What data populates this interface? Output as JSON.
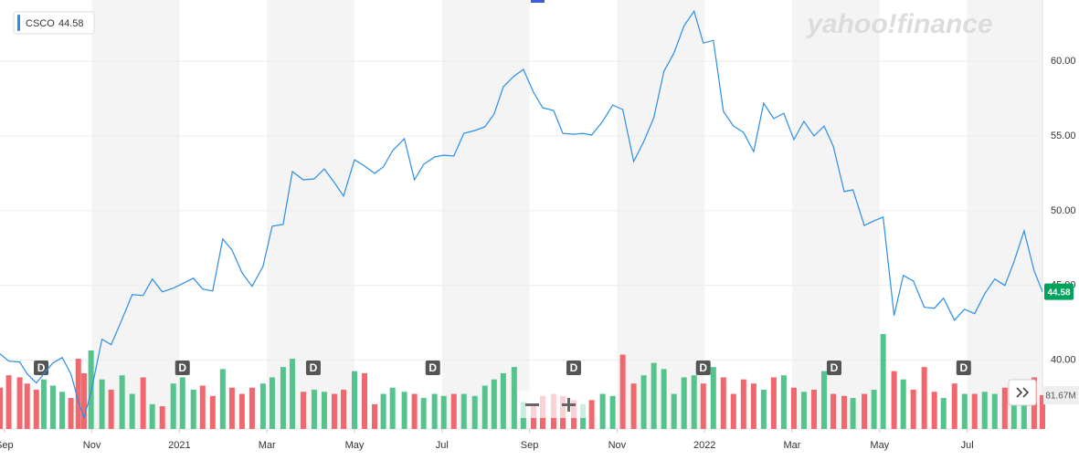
{
  "chart_data": {
    "type": "line",
    "logo": "yahoo!finance",
    "x": [
      -0.1,
      0.1,
      0.35,
      0.52,
      0.73,
      0.9,
      1.11,
      1.32,
      1.52,
      1.69,
      1.82,
      1.98,
      2.23,
      2.44,
      2.69,
      2.92,
      3.17,
      3.38,
      3.61,
      3.86,
      4.07,
      4.32,
      4.53,
      4.76,
      4.99,
      5.2,
      5.43,
      5.66,
      5.91,
      6.12,
      6.37,
      6.58,
      6.83,
      7.08,
      7.31,
      7.54,
      7.75,
      8.0,
      8.23,
      8.46,
      8.66,
      8.87,
      9.14,
      9.37,
      9.58,
      9.83,
      10.04,
      10.27,
      10.5,
      10.75,
      10.98,
      11.19,
      11.4,
      11.65,
      11.86,
      12.09,
      12.3,
      12.55,
      12.76,
      13.01,
      13.22,
      13.42,
      13.67,
      13.9,
      14.13,
      14.38,
      14.61,
      14.84,
      15.07,
      15.3,
      15.53,
      15.76,
      15.97,
      16.2,
      16.43,
      16.66,
      16.89,
      17.12,
      17.35,
      17.58,
      17.81,
      18.04,
      18.27,
      18.5,
      18.73,
      18.94,
      19.19,
      19.39,
      19.65,
      19.87,
      20.08,
      20.33,
      20.54,
      20.77,
      21.02,
      21.25,
      21.46,
      21.71,
      21.94,
      22.17,
      22.4,
      22.63,
      22.86,
      23.07,
      23.3,
      23.53,
      23.72
    ],
    "series": [
      {
        "name": "CSCO",
        "color": "#2a8ee6",
        "values": [
          40.43,
          39.94,
          39.88,
          39.09,
          38.48,
          39.09,
          39.82,
          40.18,
          39.09,
          37.26,
          36.16,
          37.87,
          41.4,
          41.04,
          42.74,
          44.39,
          44.33,
          45.43,
          44.57,
          44.82,
          45.12,
          45.49,
          44.76,
          44.63,
          48.11,
          47.38,
          45.85,
          44.94,
          46.28,
          48.96,
          49.09,
          52.62,
          52.07,
          52.13,
          52.8,
          51.89,
          50.98,
          53.41,
          52.99,
          52.5,
          52.93,
          54.02,
          54.82,
          52.07,
          53.11,
          53.6,
          53.72,
          53.66,
          55.18,
          55.37,
          55.61,
          56.46,
          58.29,
          59.02,
          59.45,
          57.93,
          56.89,
          56.71,
          55.18,
          55.12,
          55.18,
          55.06,
          55.98,
          57.07,
          56.77,
          53.29,
          54.63,
          56.22,
          59.33,
          60.55,
          62.38,
          63.35,
          61.22,
          61.4,
          56.65,
          55.67,
          55.24,
          53.96,
          57.2,
          56.16,
          56.52,
          54.76,
          55.98,
          55.0,
          55.67,
          54.33,
          51.28,
          51.4,
          49.02,
          49.33,
          49.57,
          42.99,
          45.67,
          45.3,
          43.54,
          43.48,
          44.15,
          42.68,
          43.41,
          43.11,
          44.45,
          45.43,
          45.0,
          46.59,
          48.66,
          45.98,
          44.58
        ]
      }
    ],
    "volume": {
      "up_color": "#55c48c",
      "down_color": "#f0676d",
      "vlim": [
        0,
        400
      ],
      "values": [
        100,
        130,
        125,
        110,
        95,
        120,
        105,
        90,
        75,
        170,
        135,
        190,
        120,
        95,
        130,
        85,
        125,
        60,
        55,
        110,
        125,
        95,
        105,
        80,
        145,
        100,
        85,
        100,
        110,
        125,
        150,
        170,
        90,
        95,
        90,
        85,
        95,
        140,
        135,
        60,
        85,
        100,
        90,
        85,
        75,
        85,
        80,
        85,
        85,
        80,
        105,
        120,
        135,
        150,
        65,
        60,
        80,
        85,
        80,
        70,
        60,
        70,
        85,
        80,
        180,
        110,
        130,
        160,
        145,
        85,
        125,
        130,
        110,
        150,
        125,
        85,
        120,
        110,
        95,
        125,
        130,
        100,
        90,
        95,
        140,
        85,
        80,
        75,
        85,
        95,
        230,
        140,
        120,
        95,
        150,
        90,
        75,
        110,
        85,
        85,
        90,
        85,
        100,
        105,
        110,
        125,
        81.67
      ],
      "last_value_label": "81.67M"
    },
    "dividends": {
      "label": "D",
      "x": [
        0.84,
        4.07,
        7.06,
        9.79,
        13.01,
        15.97,
        18.96,
        21.92
      ]
    },
    "xlim": [
      -0.1,
      23.72
    ],
    "xticks": [
      {
        "value": 0,
        "label": "Sep"
      },
      {
        "value": 2,
        "label": "Nov"
      },
      {
        "value": 4,
        "label": "2021"
      },
      {
        "value": 6,
        "label": "Mar"
      },
      {
        "value": 8,
        "label": "May"
      },
      {
        "value": 10,
        "label": "Jul"
      },
      {
        "value": 12,
        "label": "Sep"
      },
      {
        "value": 14,
        "label": "Nov"
      },
      {
        "value": 16,
        "label": "2022"
      },
      {
        "value": 18,
        "label": "Mar"
      },
      {
        "value": 20,
        "label": "May"
      },
      {
        "value": 22,
        "label": "Jul"
      }
    ],
    "ylim": [
      35.4,
      64.1
    ],
    "yticks": [
      {
        "value": 40,
        "label": "40.00"
      },
      {
        "value": 45,
        "label": "45.00"
      },
      {
        "value": 50,
        "label": "50.00"
      },
      {
        "value": 55,
        "label": "55.00"
      },
      {
        "value": 60,
        "label": "60.00"
      }
    ],
    "grid": true,
    "shaded_bands": true,
    "price_tag_color": "#00a35c"
  }
}
